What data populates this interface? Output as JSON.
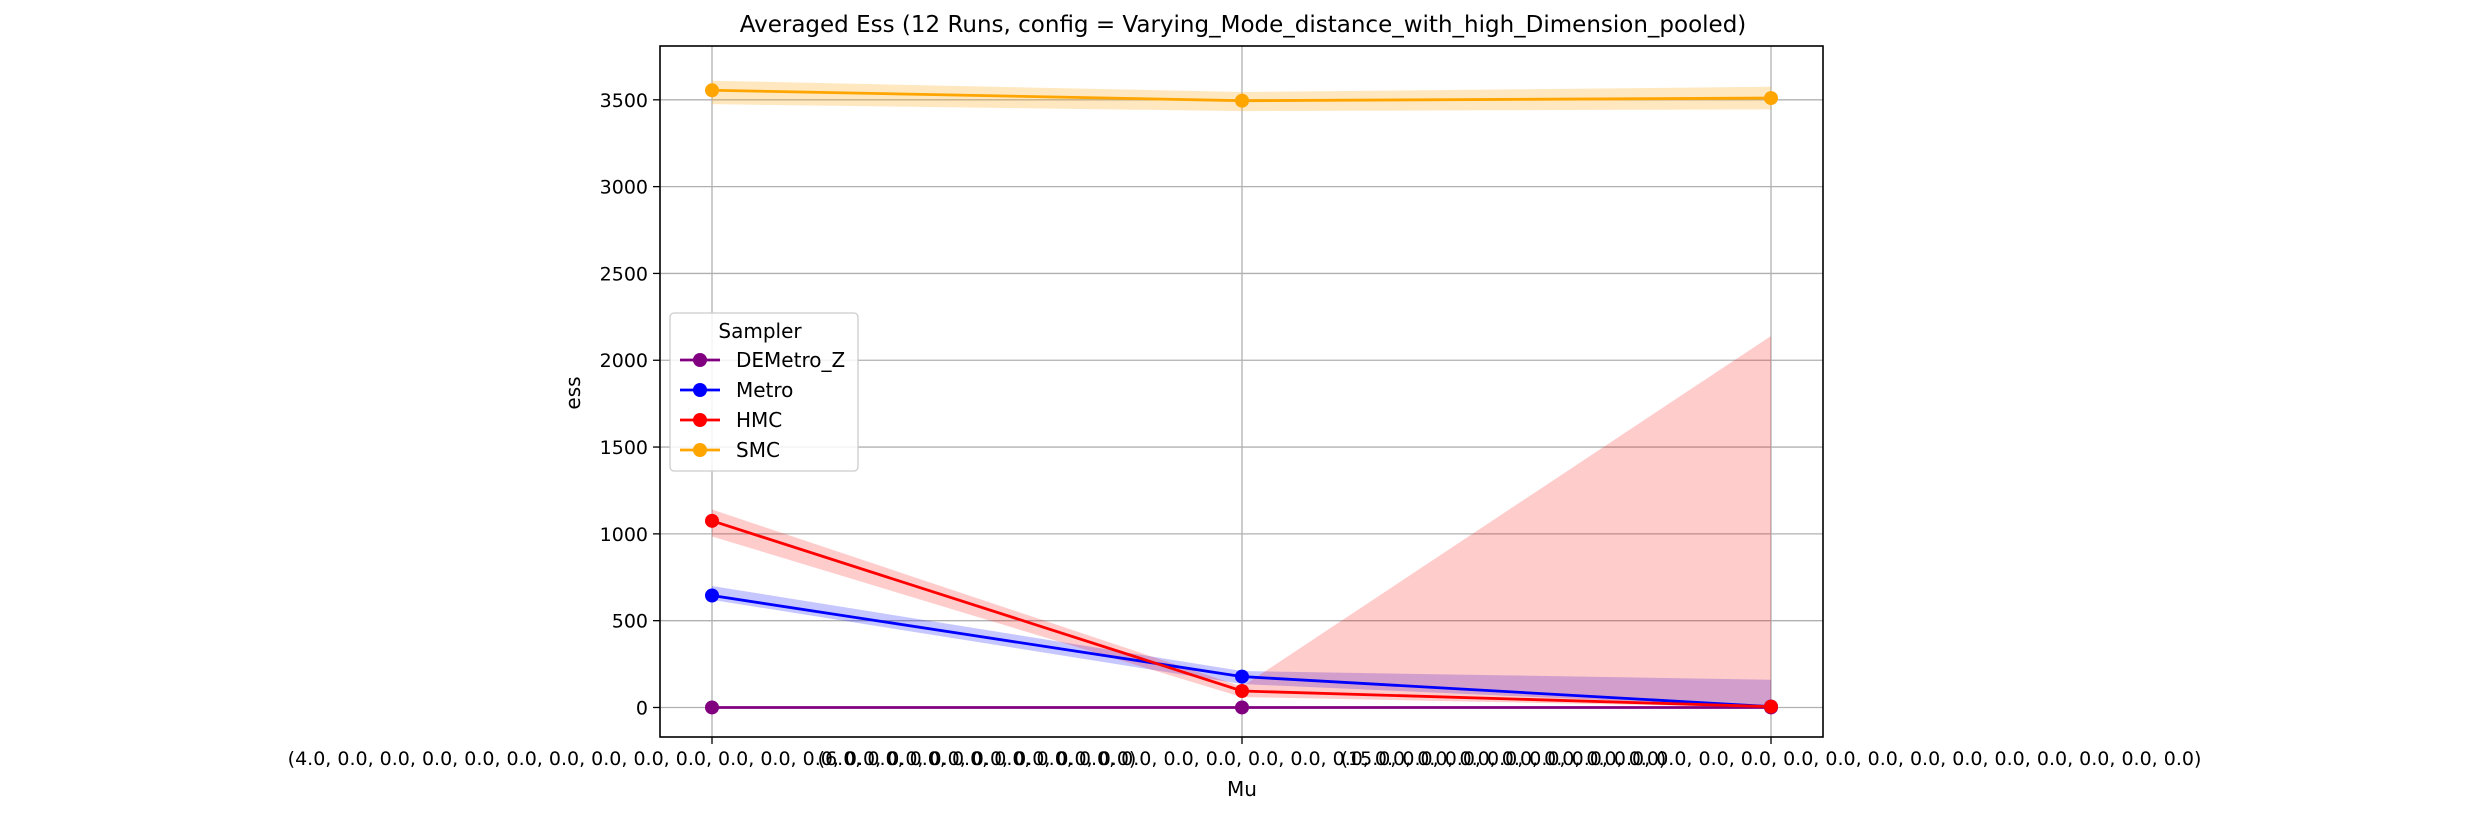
{
  "chart_data": {
    "type": "line",
    "title": "Averaged Ess (12 Runs, config = Varying_Mode_distance_with_high_Dimension_pooled)",
    "xlabel": "Mu",
    "ylabel": "ess",
    "categories": [
      "(4.0, 0.0, 0.0, 0.0, 0.0, 0.0, 0.0, 0.0, 0.0, 0.0, 0.0, 0.0, 0.0, 0.0, 0.0, 0.0, 0.0, 0.0, 0.0, 0.0)",
      "(6.0, 0.0, 0.0, 0.0, 0.0, 0.0, 0.0, 0.0, 0.0, 0.0, 0.0, 0.0, 0.0, 0.0, 0.0, 0.0, 0.0, 0.0, 0.0, 0.0)",
      "(15.0, 0.0, 0.0, 0.0, 0.0, 0.0, 0.0, 0.0, 0.0, 0.0, 0.0, 0.0, 0.0, 0.0, 0.0, 0.0, 0.0, 0.0, 0.0, 0.0)"
    ],
    "ylim": [
      -170,
      3810
    ],
    "yticks": [
      0,
      500,
      1000,
      1500,
      2000,
      2500,
      3000,
      3500
    ],
    "grid": true,
    "legend": {
      "title": "Sampler",
      "placement": "center-left"
    },
    "series": [
      {
        "name": "DEMetro_Z",
        "color": "#800080",
        "band_color": "#800080",
        "band_opacity": 0.25,
        "values": [
          0,
          0,
          0
        ],
        "lower": [
          0,
          0,
          0
        ],
        "upper": [
          0,
          0,
          0
        ]
      },
      {
        "name": "Metro",
        "color": "#0000ff",
        "band_color": "#0000ff",
        "band_opacity": 0.22,
        "values": [
          645,
          178,
          5
        ],
        "lower": [
          620,
          135,
          0
        ],
        "upper": [
          700,
          210,
          160
        ]
      },
      {
        "name": "HMC",
        "color": "#ff0000",
        "band_color": "#ff0000",
        "band_opacity": 0.2,
        "values": [
          1075,
          95,
          5
        ],
        "lower": [
          985,
          60,
          0
        ],
        "upper": [
          1140,
          120,
          2140
        ]
      },
      {
        "name": "SMC",
        "color": "#ffa500",
        "band_color": "#ffa500",
        "band_opacity": 0.25,
        "values": [
          3555,
          3495,
          3510
        ],
        "lower": [
          3475,
          3435,
          3445
        ],
        "upper": [
          3610,
          3545,
          3575
        ]
      }
    ]
  }
}
